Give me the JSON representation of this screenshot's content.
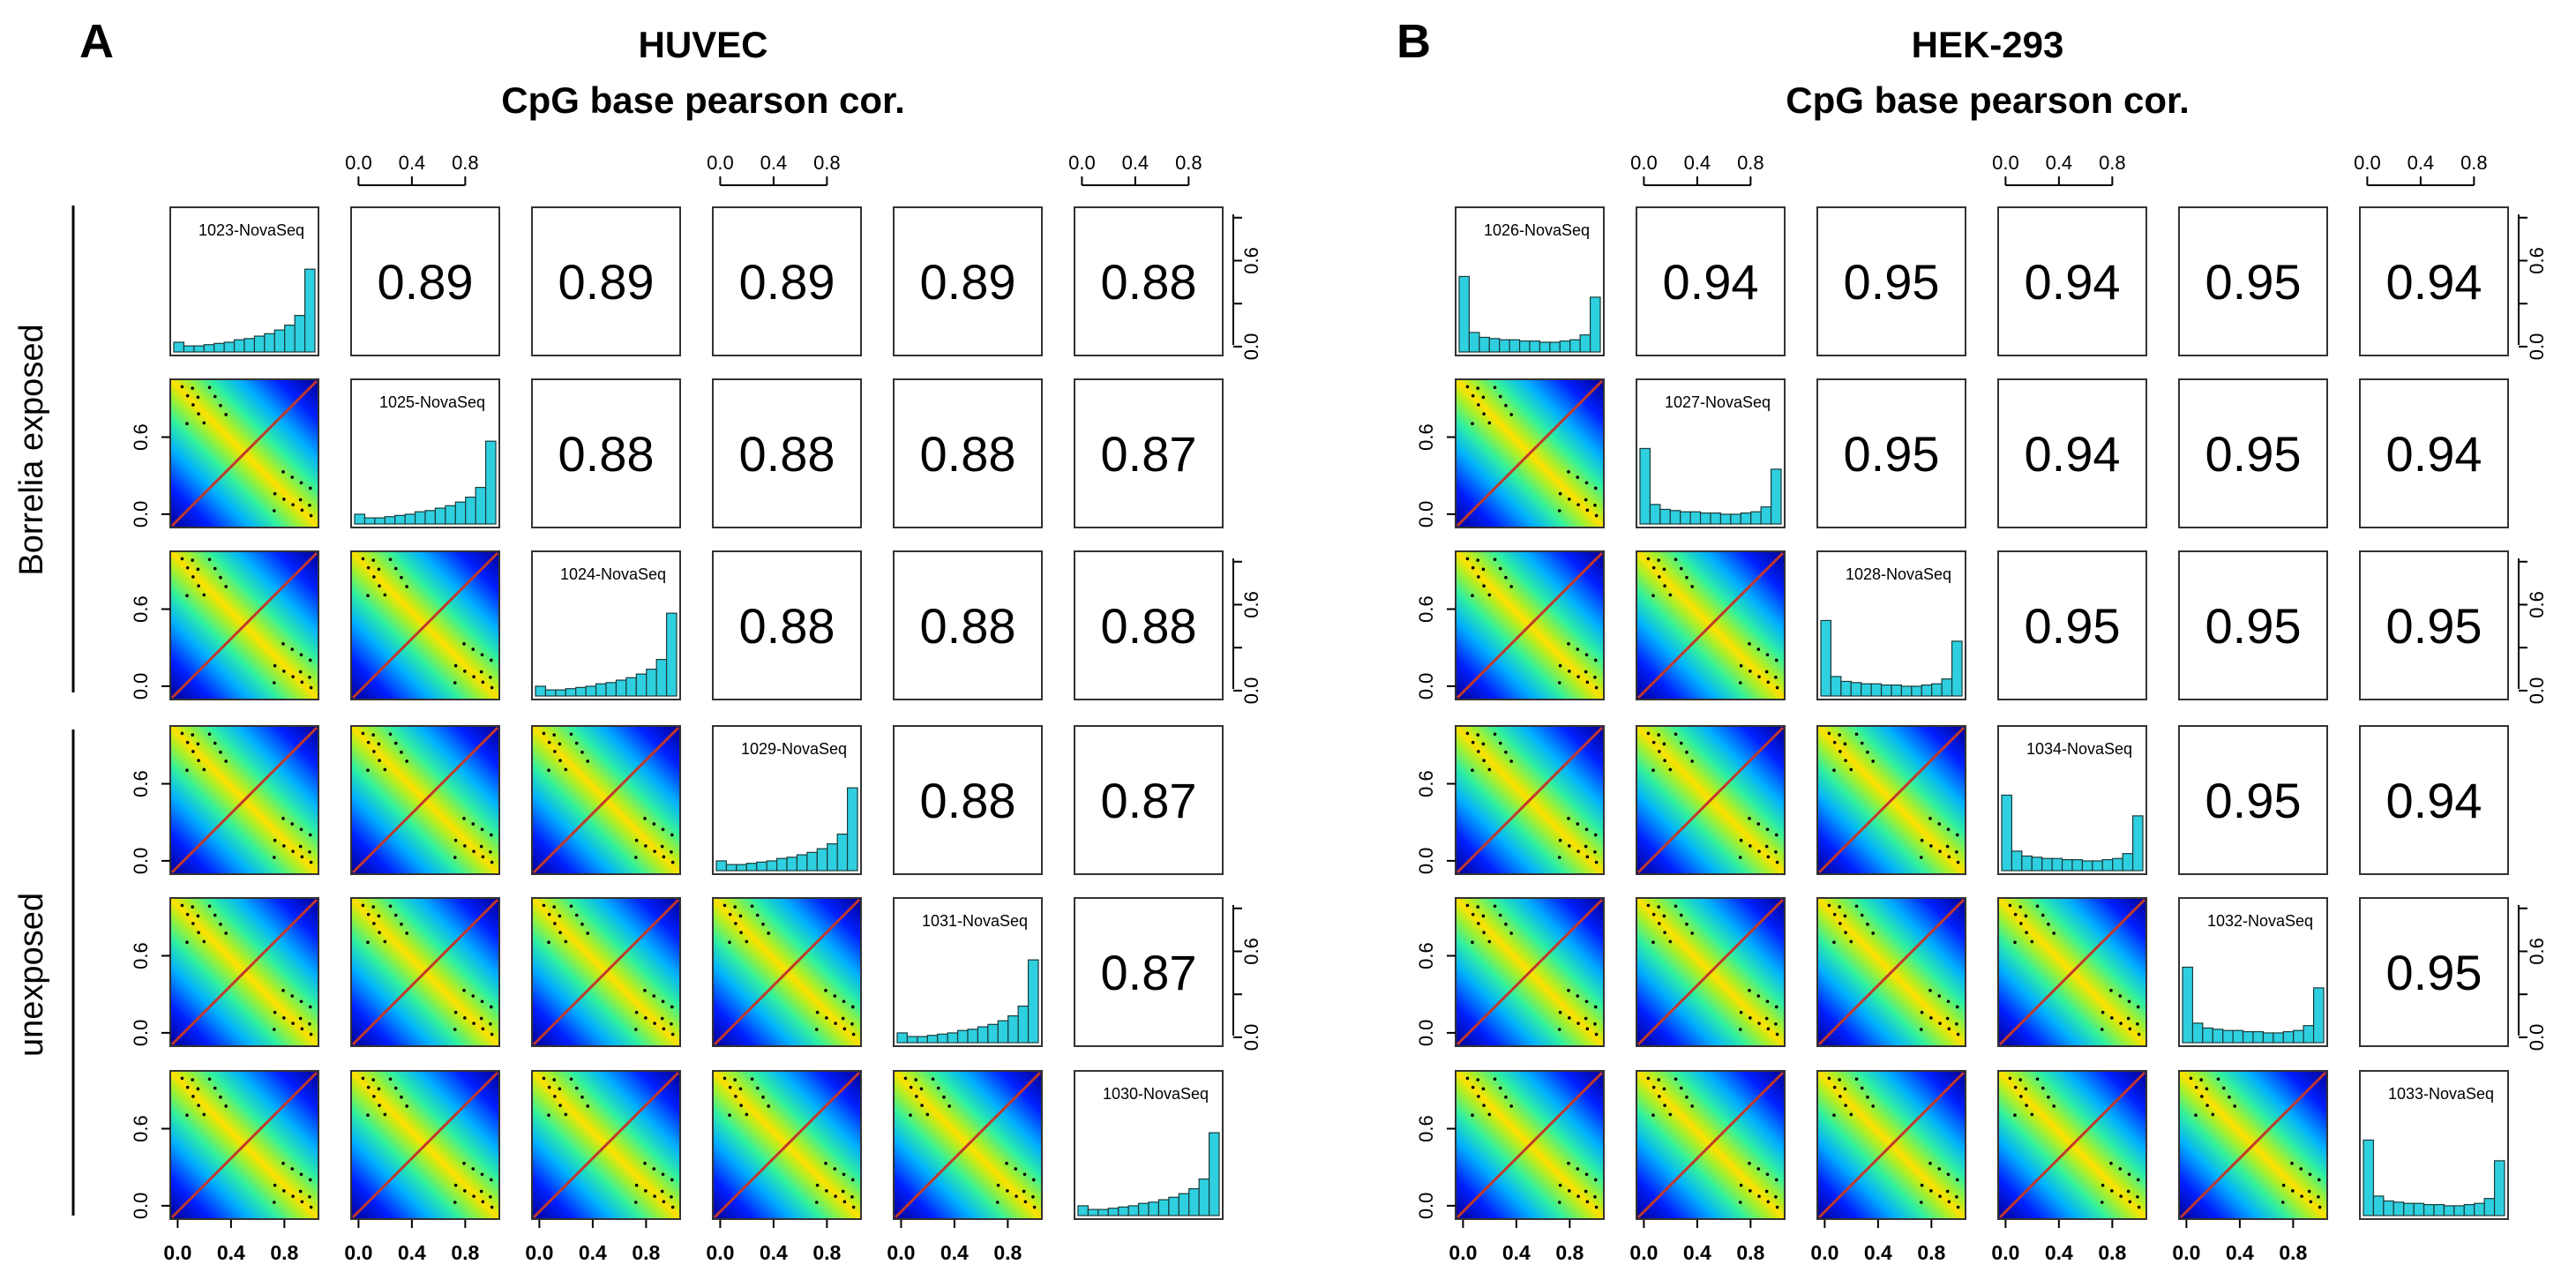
{
  "panels": [
    {
      "letter": "A",
      "title": "HUVEC",
      "subtitle": "CpG base pearson cor.",
      "group_labels": [
        "Borrelia exposed",
        "unexposed"
      ],
      "samples": [
        "1023-NovaSeq",
        "1025-NovaSeq",
        "1024-NovaSeq",
        "1029-NovaSeq",
        "1031-NovaSeq",
        "1030-NovaSeq"
      ]
    },
    {
      "letter": "B",
      "title": "HEK-293",
      "subtitle": "CpG base pearson cor.",
      "group_labels": [],
      "samples": [
        "1026-NovaSeq",
        "1027-NovaSeq",
        "1028-NovaSeq",
        "1034-NovaSeq",
        "1032-NovaSeq",
        "1033-NovaSeq"
      ]
    }
  ],
  "axis_ticks": [
    "0.0",
    "0.4",
    "0.8"
  ],
  "side_ticks": [
    "0.0",
    "0.6"
  ],
  "colors": {
    "hist_bar": "#2ed0e0",
    "fit_line": "#c0392b",
    "frame": "#333333"
  },
  "chart_data": [
    {
      "type": "heatmap",
      "title": "HUVEC",
      "subtitle": "CpG base pearson cor.",
      "samples": [
        "1023-NovaSeq",
        "1025-NovaSeq",
        "1024-NovaSeq",
        "1029-NovaSeq",
        "1031-NovaSeq",
        "1030-NovaSeq"
      ],
      "correlation_matrix": [
        [
          null,
          0.89,
          0.89,
          0.89,
          0.89,
          0.88
        ],
        [
          null,
          null,
          0.88,
          0.88,
          0.88,
          0.87
        ],
        [
          null,
          null,
          null,
          0.88,
          0.88,
          0.88
        ],
        [
          null,
          null,
          null,
          null,
          0.88,
          0.87
        ],
        [
          null,
          null,
          null,
          null,
          null,
          0.87
        ],
        [
          null,
          null,
          null,
          null,
          null,
          null
        ]
      ],
      "histograms": [
        [
          0.08,
          0.05,
          0.05,
          0.06,
          0.07,
          0.08,
          0.1,
          0.11,
          0.13,
          0.15,
          0.18,
          0.22,
          0.3,
          0.68
        ],
        [
          0.08,
          0.05,
          0.05,
          0.06,
          0.07,
          0.08,
          0.1,
          0.11,
          0.13,
          0.15,
          0.18,
          0.22,
          0.3,
          0.68
        ],
        [
          0.08,
          0.05,
          0.05,
          0.06,
          0.07,
          0.08,
          0.1,
          0.11,
          0.13,
          0.15,
          0.18,
          0.22,
          0.3,
          0.68
        ],
        [
          0.08,
          0.05,
          0.05,
          0.06,
          0.07,
          0.08,
          0.1,
          0.11,
          0.13,
          0.15,
          0.18,
          0.22,
          0.3,
          0.68
        ],
        [
          0.08,
          0.05,
          0.05,
          0.06,
          0.07,
          0.08,
          0.1,
          0.11,
          0.13,
          0.15,
          0.18,
          0.22,
          0.3,
          0.68
        ],
        [
          0.08,
          0.05,
          0.05,
          0.06,
          0.07,
          0.08,
          0.1,
          0.11,
          0.13,
          0.15,
          0.18,
          0.22,
          0.3,
          0.68
        ]
      ],
      "xlim": [
        0,
        1
      ],
      "ylim": [
        0,
        1
      ]
    },
    {
      "type": "heatmap",
      "title": "HEK-293",
      "subtitle": "CpG base pearson cor.",
      "samples": [
        "1026-NovaSeq",
        "1027-NovaSeq",
        "1028-NovaSeq",
        "1034-NovaSeq",
        "1032-NovaSeq",
        "1033-NovaSeq"
      ],
      "correlation_matrix": [
        [
          null,
          0.94,
          0.95,
          0.94,
          0.95,
          0.94
        ],
        [
          null,
          null,
          0.95,
          0.94,
          0.95,
          0.94
        ],
        [
          null,
          null,
          null,
          0.95,
          0.95,
          0.95
        ],
        [
          null,
          null,
          null,
          null,
          0.95,
          0.94
        ],
        [
          null,
          null,
          null,
          null,
          null,
          0.95
        ],
        [
          null,
          null,
          null,
          null,
          null,
          null
        ]
      ],
      "histograms": [
        [
          0.62,
          0.16,
          0.12,
          0.11,
          0.1,
          0.1,
          0.09,
          0.09,
          0.08,
          0.08,
          0.09,
          0.1,
          0.14,
          0.45
        ],
        [
          0.62,
          0.16,
          0.12,
          0.11,
          0.1,
          0.1,
          0.09,
          0.09,
          0.08,
          0.08,
          0.09,
          0.1,
          0.14,
          0.45
        ],
        [
          0.62,
          0.16,
          0.12,
          0.11,
          0.1,
          0.1,
          0.09,
          0.09,
          0.08,
          0.08,
          0.09,
          0.1,
          0.14,
          0.45
        ],
        [
          0.62,
          0.16,
          0.12,
          0.11,
          0.1,
          0.1,
          0.09,
          0.09,
          0.08,
          0.08,
          0.09,
          0.1,
          0.14,
          0.45
        ],
        [
          0.62,
          0.16,
          0.12,
          0.11,
          0.1,
          0.1,
          0.09,
          0.09,
          0.08,
          0.08,
          0.09,
          0.1,
          0.14,
          0.45
        ],
        [
          0.62,
          0.16,
          0.12,
          0.11,
          0.1,
          0.1,
          0.09,
          0.09,
          0.08,
          0.08,
          0.09,
          0.1,
          0.14,
          0.45
        ]
      ],
      "xlim": [
        0,
        1
      ],
      "ylim": [
        0,
        1
      ]
    }
  ]
}
